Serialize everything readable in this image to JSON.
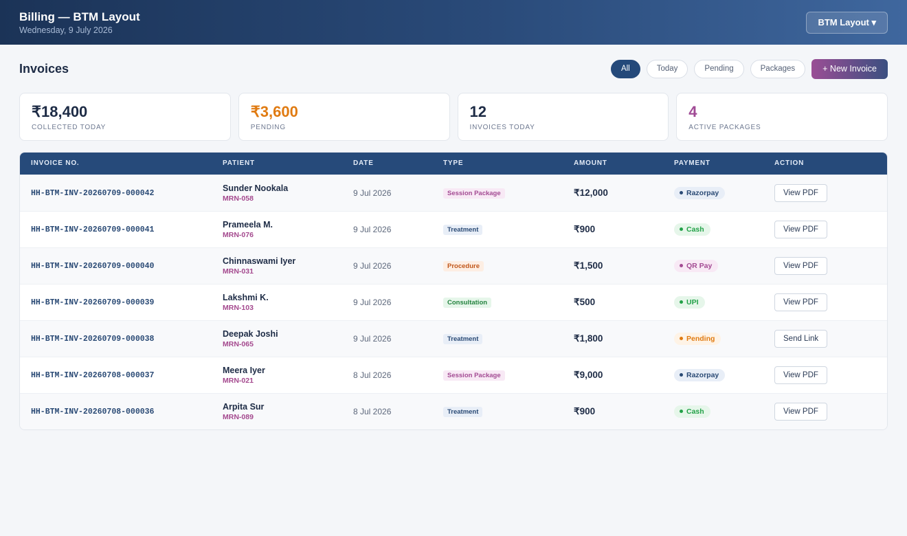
{
  "header": {
    "title": "Billing — BTM Layout",
    "date": "Wednesday, 9 July 2026",
    "branch_label": "BTM Layout ▾"
  },
  "page": {
    "title": "Invoices",
    "filters": [
      "All",
      "Today",
      "Pending",
      "Packages"
    ],
    "active_filter": "All",
    "new_invoice_label": "+ New Invoice"
  },
  "stats": [
    {
      "value": "₹18,400",
      "label": "COLLECTED TODAY",
      "color": "#1d2b45"
    },
    {
      "value": "₹3,600",
      "label": "PENDING",
      "color": "#e07b12"
    },
    {
      "value": "12",
      "label": "INVOICES TODAY",
      "color": "#1d2b45"
    },
    {
      "value": "4",
      "label": "ACTIVE PACKAGES",
      "color": "#a04a95"
    }
  ],
  "table": {
    "columns": [
      "INVOICE NO.",
      "PATIENT",
      "DATE",
      "TYPE",
      "AMOUNT",
      "PAYMENT",
      "ACTION"
    ],
    "rows": [
      {
        "invoice": "HH-BTM-INV-20260709-000042",
        "patient": "Sunder Nookala",
        "mrn": "MRN-058",
        "date": "9 Jul 2026",
        "type": "Session Package",
        "amount": "₹12,000",
        "payment": "Razorpay",
        "action": "View PDF"
      },
      {
        "invoice": "HH-BTM-INV-20260709-000041",
        "patient": "Prameela M.",
        "mrn": "MRN-076",
        "date": "9 Jul 2026",
        "type": "Treatment",
        "amount": "₹900",
        "payment": "Cash",
        "action": "View PDF"
      },
      {
        "invoice": "HH-BTM-INV-20260709-000040",
        "patient": "Chinnaswami Iyer",
        "mrn": "MRN-031",
        "date": "9 Jul 2026",
        "type": "Procedure",
        "amount": "₹1,500",
        "payment": "QR Pay",
        "action": "View PDF"
      },
      {
        "invoice": "HH-BTM-INV-20260709-000039",
        "patient": "Lakshmi K.",
        "mrn": "MRN-103",
        "date": "9 Jul 2026",
        "type": "Consultation",
        "amount": "₹500",
        "payment": "UPI",
        "action": "View PDF"
      },
      {
        "invoice": "HH-BTM-INV-20260709-000038",
        "patient": "Deepak Joshi",
        "mrn": "MRN-065",
        "date": "9 Jul 2026",
        "type": "Treatment",
        "amount": "₹1,800",
        "payment": "Pending",
        "action": "Send Link"
      },
      {
        "invoice": "HH-BTM-INV-20260708-000037",
        "patient": "Meera Iyer",
        "mrn": "MRN-021",
        "date": "8 Jul 2026",
        "type": "Session Package",
        "amount": "₹9,000",
        "payment": "Razorpay",
        "action": "View PDF"
      },
      {
        "invoice": "HH-BTM-INV-20260708-000036",
        "patient": "Arpita Sur",
        "mrn": "MRN-089",
        "date": "8 Jul 2026",
        "type": "Treatment",
        "amount": "₹900",
        "payment": "Cash",
        "action": "View PDF"
      }
    ]
  },
  "type_colors": {
    "Session Package": {
      "bg": "#f8e9f5",
      "fg": "#a34b93"
    },
    "Treatment": {
      "bg": "#e8eef7",
      "fg": "#2a4a75"
    },
    "Procedure": {
      "bg": "#fdeee3",
      "fg": "#c0561a"
    },
    "Consultation": {
      "bg": "#e6f6ea",
      "fg": "#23823e"
    }
  },
  "payment_colors": {
    "Razorpay": {
      "bg": "#e8eef7",
      "fg": "#2a4a75"
    },
    "Cash": {
      "bg": "#e6f6ea",
      "fg": "#23a148"
    },
    "QR Pay": {
      "bg": "#f8e9f5",
      "fg": "#a34b93"
    },
    "UPI": {
      "bg": "#e6f6ea",
      "fg": "#23a148"
    },
    "Pending": {
      "bg": "#fef3e6",
      "fg": "#e07b12"
    }
  }
}
